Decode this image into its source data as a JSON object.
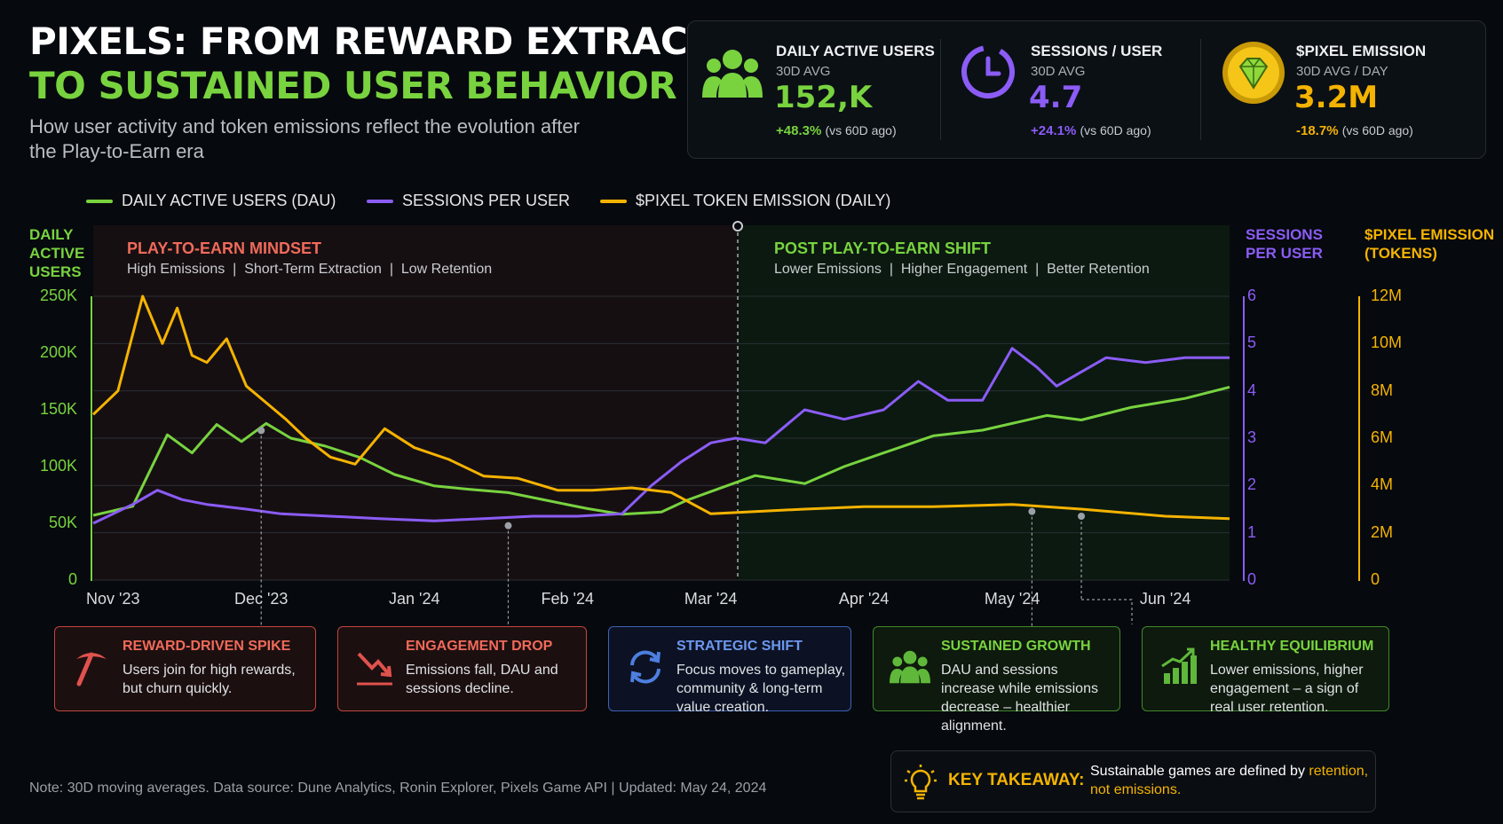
{
  "header": {
    "title_line1": "PIXELS: FROM REWARD EXTRACTION",
    "title_line2": "TO SUSTAINED USER BEHAVIOR",
    "subtitle": "How user activity and token emissions reflect the evolution after the Play-to-Earn era"
  },
  "kpis": [
    {
      "title": "DAILY ACTIVE USERS",
      "sub": "30D AVG",
      "value": "152,K",
      "change": "+48.3%",
      "change_note": "(vs 60D ago)",
      "color": "#78d33f",
      "icon": "users-icon"
    },
    {
      "title": "SESSIONS / USER",
      "sub": "30D AVG",
      "value": "4.7",
      "change": "+24.1%",
      "change_note": "(vs 60D ago)",
      "color": "#8b5cf6",
      "icon": "clock-icon"
    },
    {
      "title": "$PIXEL EMISSION",
      "sub": "30D AVG / DAY",
      "value": "3.2M",
      "change": "-18.7%",
      "change_note": "(vs 60D ago)",
      "color": "#f5b301",
      "icon": "pixel-gem-icon"
    }
  ],
  "legend": {
    "dau": "DAILY ACTIVE USERS (DAU)",
    "sessions": "SESSIONS PER USER",
    "emission": "$PIXEL TOKEN EMISSION (DAILY)"
  },
  "axes": {
    "left_title": [
      "DAILY",
      "ACTIVE",
      "USERS"
    ],
    "mid_title": [
      "SESSIONS",
      "PER USER"
    ],
    "right_title": [
      "$PIXEL EMISSION",
      "(TOKENS)"
    ],
    "left_ticks": [
      "250K",
      "200K",
      "150K",
      "100K",
      "50K",
      "0"
    ],
    "mid_ticks": [
      "6",
      "5",
      "4",
      "3",
      "2",
      "1",
      "0"
    ],
    "right_ticks": [
      "12M",
      "10M",
      "8M",
      "6M",
      "4M",
      "2M",
      "0"
    ],
    "x_ticks": [
      "Nov '23",
      "Dec '23",
      "Jan '24",
      "Feb '24",
      "Mar '24",
      "Apr '24",
      "May '24",
      "Jun '24"
    ]
  },
  "regions": {
    "left_title": "PLAY-TO-EARN MINDSET",
    "left_sub": [
      "High Emissions",
      "Short-Term Extraction",
      "Low Retention"
    ],
    "right_title": "POST PLAY-TO-EARN SHIFT",
    "right_sub": [
      "Lower Emissions",
      "Higher Engagement",
      "Better Retention"
    ]
  },
  "cards": [
    {
      "title": "REWARD-DRIVEN SPIKE",
      "text": "Users join for high rewards, but churn quickly.",
      "color": "#e0524d",
      "icon": "pickaxe-icon"
    },
    {
      "title": "ENGAGEMENT DROP",
      "text": "Emissions fall, DAU and sessions decline.",
      "color": "#e0524d",
      "icon": "trend-down-icon"
    },
    {
      "title": "STRATEGIC SHIFT",
      "text": "Focus moves to gameplay, community & long-term value creation.",
      "color": "#4d7fe0",
      "icon": "refresh-icon"
    },
    {
      "title": "SUSTAINED GROWTH",
      "text": "DAU and sessions increase while emissions decrease – healthier alignment.",
      "color": "#5fb83a",
      "icon": "users-icon"
    },
    {
      "title": "HEALTHY EQUILIBRIUM",
      "text": "Lower emissions, higher engagement – a sign of real user retention.",
      "color": "#5fb83a",
      "icon": "bar-growth-icon"
    }
  ],
  "footer": "Note: 30D moving averages. Data source: Dune Analytics, Ronin Explorer, Pixels Game API  |  Updated: May 24, 2024",
  "takeaway": {
    "label": "KEY TAKEAWAY:",
    "text_plain": "Sustainable games are defined by ",
    "text_highlight_1": "retention,",
    "text_highlight_2": "not emissions."
  },
  "chart_data": {
    "type": "line",
    "x_labels": [
      "Nov '23",
      "Dec '23",
      "Jan '24",
      "Feb '24",
      "Mar '24",
      "Apr '24",
      "May '24",
      "Jun '24"
    ],
    "x_start": "2023-10-28",
    "x_end": "2024-06-14",
    "divider_date": "2024-03-01",
    "series": [
      {
        "name": "DAILY ACTIVE USERS (DAU)",
        "axis": "left",
        "color": "#78d33f",
        "x": [
          "2023-10-28",
          "2023-11-05",
          "2023-11-12",
          "2023-11-17",
          "2023-11-22",
          "2023-11-27",
          "2023-12-02",
          "2023-12-07",
          "2023-12-14",
          "2023-12-21",
          "2023-12-28",
          "2024-01-05",
          "2024-01-12",
          "2024-01-20",
          "2024-01-28",
          "2024-02-05",
          "2024-02-12",
          "2024-02-20",
          "2024-02-25",
          "2024-03-01",
          "2024-03-10",
          "2024-03-20",
          "2024-03-28",
          "2024-04-05",
          "2024-04-15",
          "2024-04-25",
          "2024-05-01",
          "2024-05-08",
          "2024-05-15",
          "2024-05-25",
          "2024-06-05",
          "2024-06-14"
        ],
        "values": [
          57,
          65,
          128,
          112,
          137,
          122,
          138,
          125,
          118,
          108,
          93,
          83,
          80,
          77,
          70,
          63,
          58,
          60,
          70,
          78,
          92,
          85,
          100,
          112,
          127,
          132,
          138,
          145,
          141,
          152,
          160,
          170
        ]
      },
      {
        "name": "SESSIONS PER USER",
        "axis": "mid",
        "color": "#8b5cf6",
        "x": [
          "2023-10-28",
          "2023-11-05",
          "2023-11-10",
          "2023-11-15",
          "2023-11-20",
          "2023-11-28",
          "2023-12-05",
          "2023-12-15",
          "2023-12-25",
          "2024-01-05",
          "2024-01-15",
          "2024-01-25",
          "2024-02-03",
          "2024-02-12",
          "2024-02-18",
          "2024-02-24",
          "2024-03-01",
          "2024-03-06",
          "2024-03-12",
          "2024-03-20",
          "2024-03-28",
          "2024-04-05",
          "2024-04-12",
          "2024-04-18",
          "2024-04-25",
          "2024-05-01",
          "2024-05-06",
          "2024-05-10",
          "2024-05-15",
          "2024-05-20",
          "2024-05-28",
          "2024-06-05",
          "2024-06-14"
        ],
        "values": [
          1.2,
          1.6,
          1.9,
          1.7,
          1.6,
          1.5,
          1.4,
          1.35,
          1.3,
          1.25,
          1.3,
          1.35,
          1.35,
          1.4,
          2.0,
          2.5,
          2.9,
          3.0,
          2.9,
          3.6,
          3.4,
          3.6,
          4.2,
          3.8,
          3.8,
          4.9,
          4.5,
          4.1,
          4.4,
          4.7,
          4.6,
          4.7,
          4.7
        ]
      },
      {
        "name": "$PIXEL TOKEN EMISSION (DAILY)",
        "axis": "right",
        "color": "#f5b301",
        "x": [
          "2023-10-28",
          "2023-11-02",
          "2023-11-07",
          "2023-11-11",
          "2023-11-14",
          "2023-11-17",
          "2023-11-20",
          "2023-11-24",
          "2023-11-28",
          "2023-12-02",
          "2023-12-06",
          "2023-12-10",
          "2023-12-15",
          "2023-12-20",
          "2023-12-26",
          "2024-01-01",
          "2024-01-08",
          "2024-01-15",
          "2024-01-22",
          "2024-01-30",
          "2024-02-06",
          "2024-02-14",
          "2024-02-22",
          "2024-03-01",
          "2024-03-10",
          "2024-03-20",
          "2024-04-01",
          "2024-04-15",
          "2024-05-01",
          "2024-05-15",
          "2024-06-01",
          "2024-06-14"
        ],
        "values": [
          7.0,
          8.0,
          12.0,
          10.0,
          11.5,
          9.5,
          9.2,
          10.2,
          8.2,
          7.5,
          6.8,
          6.0,
          5.2,
          4.9,
          6.4,
          5.6,
          5.1,
          4.4,
          4.3,
          3.8,
          3.8,
          3.9,
          3.7,
          2.8,
          2.9,
          3.0,
          3.1,
          3.1,
          3.2,
          3.0,
          2.7,
          2.6
        ]
      }
    ],
    "ylim_left": [
      0,
      250000
    ],
    "ylim_mid": [
      0,
      6
    ],
    "ylim_right": [
      0,
      12000000
    ],
    "annotations": [
      "REWARD-DRIVEN SPIKE",
      "ENGAGEMENT DROP",
      "STRATEGIC SHIFT",
      "SUSTAINED GROWTH",
      "HEALTHY EQUILIBRIUM"
    ]
  }
}
